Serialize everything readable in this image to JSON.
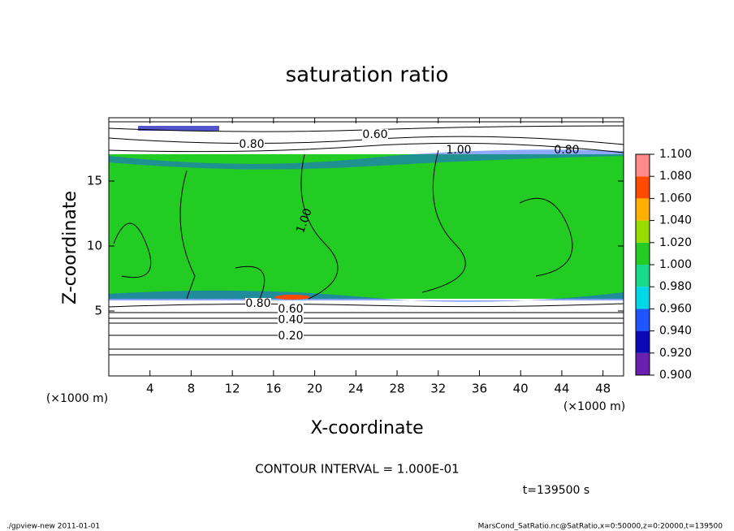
{
  "chart_data": {
    "type": "contour",
    "title": "saturation ratio",
    "x_label": "X-coordinate",
    "y_label": "Z-coordinate",
    "x_unit": "(×1000 m)",
    "y_unit": "(×1000 m)",
    "xlim": [
      0,
      50
    ],
    "ylim": [
      0,
      20
    ],
    "xticks": [
      4,
      8,
      12,
      16,
      20,
      24,
      28,
      32,
      36,
      40,
      44,
      48
    ],
    "yticks": [
      5,
      10,
      15
    ],
    "contour_labels": [
      "0.20",
      "0.40",
      "0.60",
      "0.80",
      "1.00",
      "0.80",
      "0.60",
      "1.00",
      "0.80"
    ],
    "contour_interval": "CONTOUR INTERVAL = 1.000E-01",
    "time": "t=139500 s",
    "colorbar": {
      "ticks": [
        {
          "value": 0.9,
          "label": "0.900"
        },
        {
          "value": 0.92,
          "label": "0.920"
        },
        {
          "value": 0.94,
          "label": "0.940"
        },
        {
          "value": 0.96,
          "label": "0.960"
        },
        {
          "value": 0.98,
          "label": "0.980"
        },
        {
          "value": 1.0,
          "label": "1.000"
        },
        {
          "value": 1.02,
          "label": "1.020"
        },
        {
          "value": 1.04,
          "label": "1.040"
        },
        {
          "value": 1.06,
          "label": "1.060"
        },
        {
          "value": 1.08,
          "label": "1.080"
        },
        {
          "value": 1.1,
          "label": "1.100"
        }
      ],
      "colors": [
        "#6a1fb0",
        "#0a0ab4",
        "#1e55ff",
        "#00d8e8",
        "#19d98a",
        "#22cc22",
        "#99dd00",
        "#ffb000",
        "#ff4a00",
        "#ff8a8a"
      ]
    },
    "footer_left": "./gpview-new   2011-01-01",
    "footer_right": "MarsCond_SatRatio.nc@SatRatio,x=0:50000,z=0:20000,t=139500"
  }
}
